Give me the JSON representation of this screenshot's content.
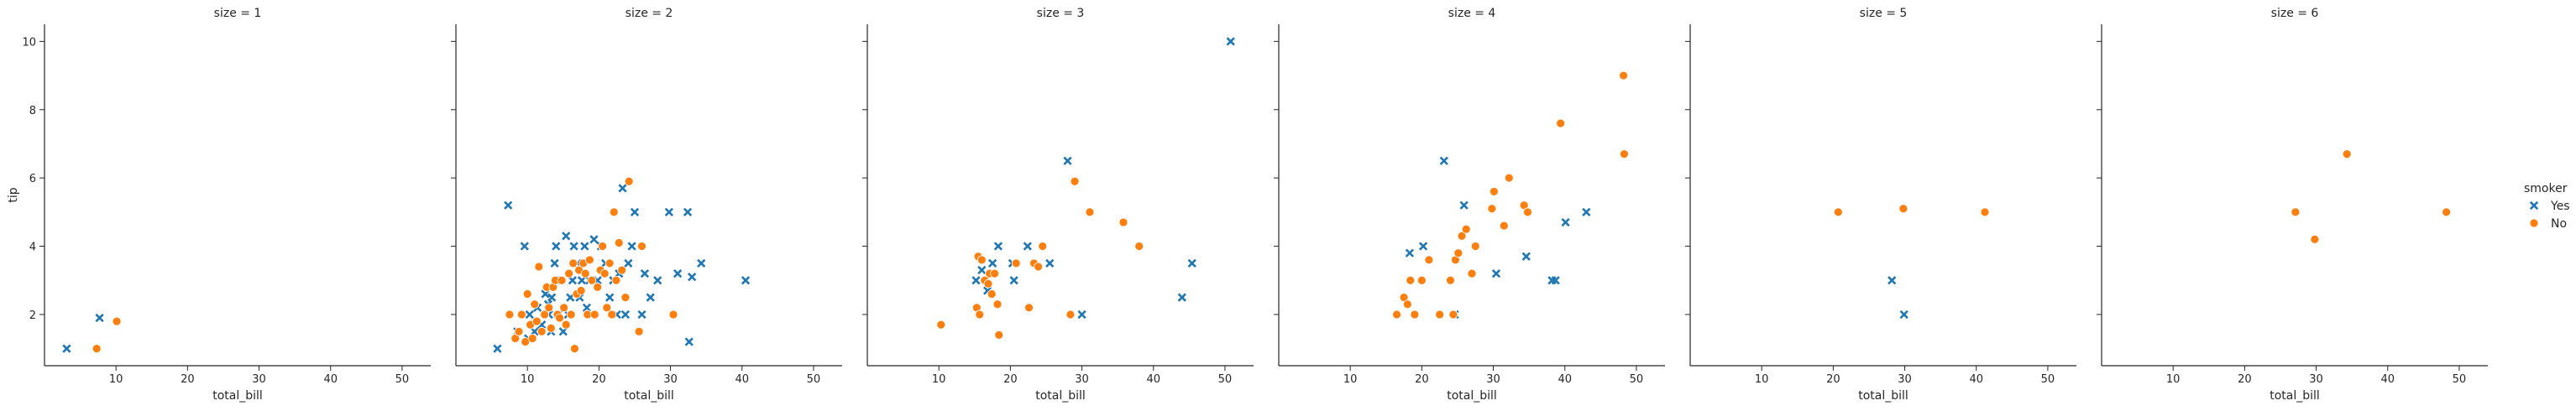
{
  "chart_data": {
    "type": "scatter",
    "ylabel": "tip",
    "xlabel": "total_bill",
    "xlim": [
      0,
      54
    ],
    "ylim": [
      0.5,
      10.5
    ],
    "xticks": [
      10,
      20,
      30,
      40,
      50
    ],
    "yticks": [
      2,
      4,
      6,
      8,
      10
    ],
    "grid": false,
    "legend": {
      "title": "smoker",
      "placement": "right",
      "entries": [
        {
          "name": "Yes",
          "color": "#1f77b4",
          "marker": "x"
        },
        {
          "name": "No",
          "color": "#ff7f0e",
          "marker": "circle"
        }
      ]
    },
    "panels": [
      {
        "title": "size = 1",
        "series": [
          {
            "name": "Yes",
            "points": [
              [
                3.1,
                1.0
              ],
              [
                7.7,
                1.9
              ]
            ]
          },
          {
            "name": "No",
            "points": [
              [
                7.3,
                1.0
              ],
              [
                10.1,
                1.8
              ]
            ]
          }
        ]
      },
      {
        "title": "size = 2",
        "series": [
          {
            "name": "Yes",
            "points": [
              [
                5.8,
                1.0
              ],
              [
                7.3,
                5.2
              ],
              [
                8.6,
                1.5
              ],
              [
                9.6,
                4.0
              ],
              [
                10.1,
                1.3
              ],
              [
                10.3,
                2.0
              ],
              [
                11.0,
                1.5
              ],
              [
                11.4,
                2.2
              ],
              [
                12.0,
                1.7
              ],
              [
                12.5,
                2.6
              ],
              [
                12.9,
                2.3
              ],
              [
                13.0,
                2.0
              ],
              [
                13.3,
                1.5
              ],
              [
                13.4,
                2.5
              ],
              [
                13.8,
                3.5
              ],
              [
                14.0,
                4.0
              ],
              [
                14.3,
                2.0
              ],
              [
                14.7,
                3.0
              ],
              [
                15.0,
                1.5
              ],
              [
                15.4,
                4.3
              ],
              [
                15.7,
                2.0
              ],
              [
                16.0,
                2.5
              ],
              [
                16.3,
                3.0
              ],
              [
                16.5,
                4.0
              ],
              [
                17.0,
                3.5
              ],
              [
                17.3,
                2.5
              ],
              [
                17.6,
                3.0
              ],
              [
                18.0,
                4.0
              ],
              [
                18.3,
                2.2
              ],
              [
                18.7,
                3.0
              ],
              [
                19.3,
                4.2
              ],
              [
                19.8,
                3.0
              ],
              [
                20.3,
                4.0
              ],
              [
                20.9,
                3.5
              ],
              [
                21.5,
                2.5
              ],
              [
                22.0,
                3.0
              ],
              [
                22.5,
                2.0
              ],
              [
                22.8,
                3.2
              ],
              [
                23.3,
                5.7
              ],
              [
                23.7,
                2.0
              ],
              [
                24.1,
                3.5
              ],
              [
                24.6,
                4.0
              ],
              [
                25.0,
                5.0
              ],
              [
                26.0,
                2.0
              ],
              [
                26.4,
                3.2
              ],
              [
                27.2,
                2.5
              ],
              [
                28.2,
                3.0
              ],
              [
                29.8,
                5.0
              ],
              [
                31.0,
                3.2
              ],
              [
                32.4,
                5.0
              ],
              [
                32.6,
                1.2
              ],
              [
                33.0,
                3.1
              ],
              [
                34.3,
                3.5
              ],
              [
                40.5,
                3.0
              ]
            ]
          },
          {
            "name": "No",
            "points": [
              [
                7.5,
                2.0
              ],
              [
                8.3,
                1.3
              ],
              [
                8.8,
                1.5
              ],
              [
                9.2,
                2.0
              ],
              [
                9.7,
                1.2
              ],
              [
                10.0,
                2.6
              ],
              [
                10.4,
                1.7
              ],
              [
                10.7,
                1.3
              ],
              [
                11.0,
                2.3
              ],
              [
                11.3,
                1.8
              ],
              [
                11.6,
                3.4
              ],
              [
                12.0,
                1.5
              ],
              [
                12.4,
                2.0
              ],
              [
                12.7,
                2.8
              ],
              [
                13.0,
                2.2
              ],
              [
                13.3,
                1.6
              ],
              [
                13.6,
                2.8
              ],
              [
                13.9,
                3.0
              ],
              [
                14.2,
                2.0
              ],
              [
                14.5,
                1.9
              ],
              [
                14.8,
                3.0
              ],
              [
                15.1,
                2.2
              ],
              [
                15.4,
                1.7
              ],
              [
                15.8,
                3.2
              ],
              [
                16.1,
                2.0
              ],
              [
                16.4,
                3.5
              ],
              [
                16.6,
                1.0
              ],
              [
                16.9,
                2.6
              ],
              [
                17.2,
                3.3
              ],
              [
                17.5,
                2.7
              ],
              [
                17.8,
                3.5
              ],
              [
                18.1,
                3.2
              ],
              [
                18.4,
                2.0
              ],
              [
                18.7,
                3.6
              ],
              [
                19.0,
                3.0
              ],
              [
                19.4,
                2.0
              ],
              [
                19.8,
                2.8
              ],
              [
                20.2,
                3.3
              ],
              [
                20.5,
                4.0
              ],
              [
                20.8,
                3.2
              ],
              [
                21.1,
                2.2
              ],
              [
                21.5,
                3.5
              ],
              [
                21.8,
                2.0
              ],
              [
                22.1,
                5.0
              ],
              [
                22.4,
                3.0
              ],
              [
                22.8,
                4.1
              ],
              [
                23.2,
                3.3
              ],
              [
                23.7,
                2.5
              ],
              [
                24.2,
                5.9
              ],
              [
                25.6,
                1.5
              ],
              [
                26.0,
                4.0
              ],
              [
                30.4,
                2.0
              ]
            ]
          }
        ]
      },
      {
        "title": "size = 3",
        "series": [
          {
            "name": "Yes",
            "points": [
              [
                15.2,
                3.0
              ],
              [
                16.0,
                3.3
              ],
              [
                16.8,
                2.7
              ],
              [
                17.5,
                3.5
              ],
              [
                18.3,
                4.0
              ],
              [
                20.3,
                3.5
              ],
              [
                20.5,
                3.0
              ],
              [
                22.4,
                4.0
              ],
              [
                25.5,
                3.5
              ],
              [
                28.0,
                6.5
              ],
              [
                30.0,
                2.0
              ],
              [
                44.0,
                2.5
              ],
              [
                45.4,
                3.5
              ],
              [
                50.8,
                10.0
              ]
            ]
          },
          {
            "name": "No",
            "points": [
              [
                10.3,
                1.7
              ],
              [
                15.3,
                2.2
              ],
              [
                15.5,
                3.7
              ],
              [
                15.7,
                2.0
              ],
              [
                16.0,
                3.6
              ],
              [
                16.4,
                3.0
              ],
              [
                16.9,
                2.9
              ],
              [
                17.1,
                3.2
              ],
              [
                17.4,
                2.6
              ],
              [
                17.8,
                3.2
              ],
              [
                18.2,
                2.3
              ],
              [
                18.4,
                1.4
              ],
              [
                20.8,
                3.5
              ],
              [
                22.6,
                2.2
              ],
              [
                23.3,
                3.5
              ],
              [
                23.9,
                3.4
              ],
              [
                24.5,
                4.0
              ],
              [
                28.4,
                2.0
              ],
              [
                29.0,
                5.9
              ],
              [
                31.1,
                5.0
              ],
              [
                35.8,
                4.7
              ],
              [
                38.0,
                4.0
              ]
            ]
          }
        ]
      },
      {
        "title": "size = 4",
        "series": [
          {
            "name": "Yes",
            "points": [
              [
                18.3,
                3.8
              ],
              [
                20.2,
                4.0
              ],
              [
                23.1,
                6.5
              ],
              [
                24.6,
                2.0
              ],
              [
                25.9,
                5.2
              ],
              [
                30.4,
                3.2
              ],
              [
                34.6,
                3.7
              ],
              [
                38.2,
                3.0
              ],
              [
                38.7,
                3.0
              ],
              [
                40.1,
                4.7
              ],
              [
                43.0,
                5.0
              ]
            ]
          },
          {
            "name": "No",
            "points": [
              [
                16.5,
                2.0
              ],
              [
                17.5,
                2.5
              ],
              [
                18.0,
                2.3
              ],
              [
                18.4,
                3.0
              ],
              [
                19.0,
                2.0
              ],
              [
                20.0,
                3.0
              ],
              [
                21.0,
                3.6
              ],
              [
                22.5,
                2.0
              ],
              [
                24.0,
                3.0
              ],
              [
                24.4,
                2.0
              ],
              [
                24.7,
                3.6
              ],
              [
                25.1,
                3.8
              ],
              [
                25.6,
                4.3
              ],
              [
                26.2,
                4.5
              ],
              [
                27.0,
                3.2
              ],
              [
                27.5,
                4.0
              ],
              [
                29.8,
                5.1
              ],
              [
                30.1,
                5.6
              ],
              [
                31.5,
                4.6
              ],
              [
                32.2,
                6.0
              ],
              [
                34.3,
                5.2
              ],
              [
                34.8,
                5.0
              ],
              [
                39.4,
                7.6
              ],
              [
                48.2,
                9.0
              ],
              [
                48.3,
                6.7
              ]
            ]
          }
        ]
      },
      {
        "title": "size = 5",
        "series": [
          {
            "name": "Yes",
            "points": [
              [
                28.2,
                3.0
              ],
              [
                29.9,
                2.0
              ]
            ]
          },
          {
            "name": "No",
            "points": [
              [
                20.7,
                5.0
              ],
              [
                29.8,
                5.1
              ],
              [
                41.2,
                5.0
              ]
            ]
          }
        ]
      },
      {
        "title": "size = 6",
        "series": [
          {
            "name": "Yes",
            "points": []
          },
          {
            "name": "No",
            "points": [
              [
                27.1,
                5.0
              ],
              [
                29.8,
                4.2
              ],
              [
                34.3,
                6.7
              ],
              [
                48.2,
                5.0
              ]
            ]
          }
        ]
      }
    ]
  }
}
